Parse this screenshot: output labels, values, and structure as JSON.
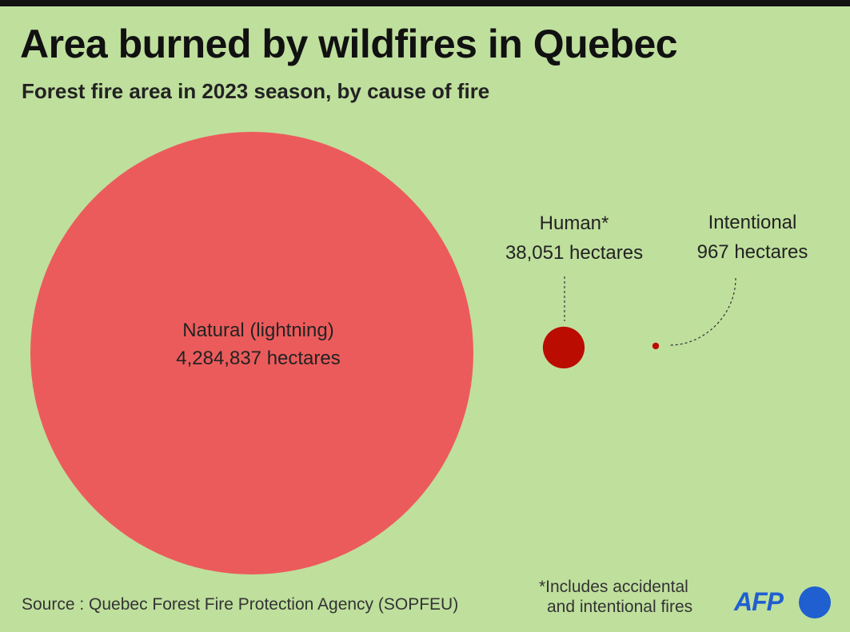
{
  "title": "Area burned by wildfires in Quebec",
  "subtitle": "Forest fire area in 2023 season, by cause of fire",
  "chart_data": {
    "type": "bubble",
    "title": "Area burned by wildfires in Quebec",
    "subtitle": "Forest fire area in 2023 season, by cause of fire",
    "categories": [
      "Natural (lightning)",
      "Human*",
      "Intentional"
    ],
    "values": [
      4284837,
      38051,
      967
    ],
    "value_labels": [
      "4,284,837 hectares",
      "38,051 hectares",
      "967 hectares"
    ],
    "unit": "hectares",
    "colors": [
      "#ec5b5b",
      "#bb0c02",
      "#bb0c02"
    ]
  },
  "source": "Source : Quebec Forest Fire Protection Agency (SOPFEU)",
  "footnote": {
    "line1": "*Includes accidental",
    "line2": "and intentional fires"
  },
  "logo": {
    "text": "AFP",
    "color": "#1f5fd0"
  }
}
